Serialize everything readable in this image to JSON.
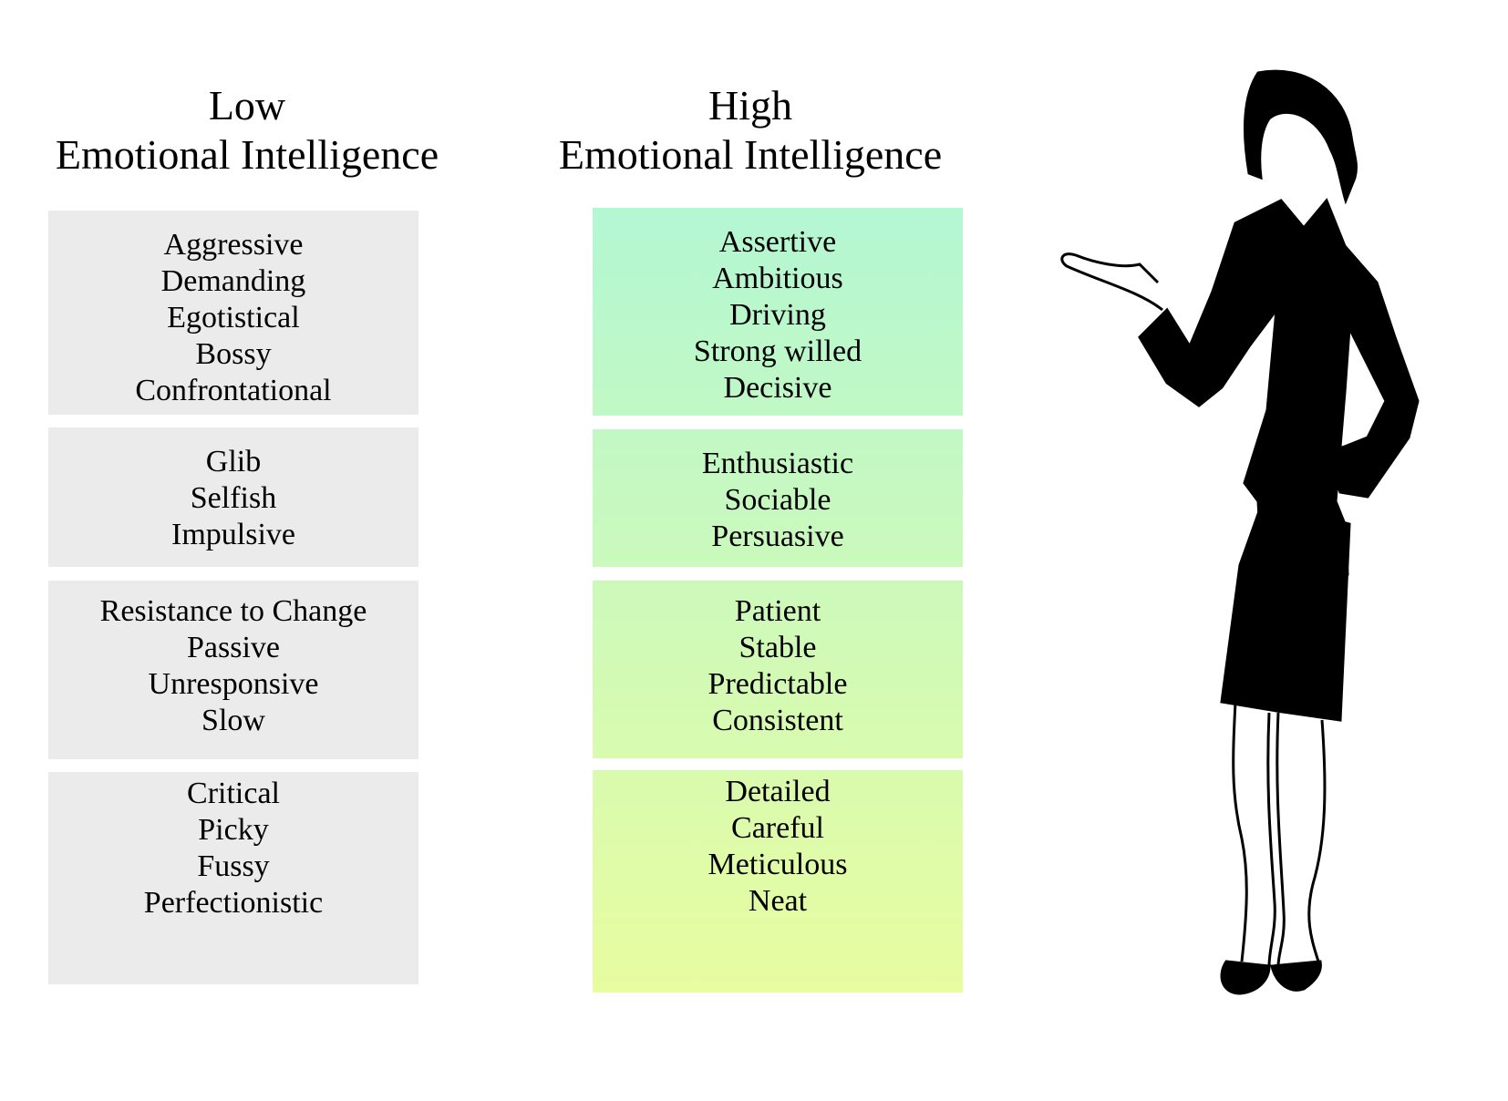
{
  "low": {
    "title_line1": "Low",
    "title_line2": "Emotional Intelligence",
    "groups": [
      [
        "Aggressive",
        "Demanding",
        "Egotistical",
        "Bossy",
        "Confrontational"
      ],
      [
        "Glib",
        "Selfish",
        "Impulsive"
      ],
      [
        "Resistance to Change",
        "Passive",
        "Unresponsive",
        "Slow"
      ],
      [
        "Critical",
        "Picky",
        "Fussy",
        "Perfectionistic"
      ]
    ],
    "color": "#ebebeb"
  },
  "high": {
    "title_line1": "High",
    "title_line2": "Emotional Intelligence",
    "groups": [
      [
        "Assertive",
        "Ambitious",
        "Driving",
        "Strong willed",
        "Decisive"
      ],
      [
        "Enthusiastic",
        "Sociable",
        "Persuasive"
      ],
      [
        "Patient",
        "Stable",
        "Predictable",
        "Consistent"
      ],
      [
        "Detailed",
        "Careful",
        "Meticulous",
        "Neat"
      ]
    ],
    "gradient": [
      "#b3f7d3",
      "#e8fca0"
    ]
  },
  "figure": {
    "icon": "businesswoman-silhouette"
  }
}
